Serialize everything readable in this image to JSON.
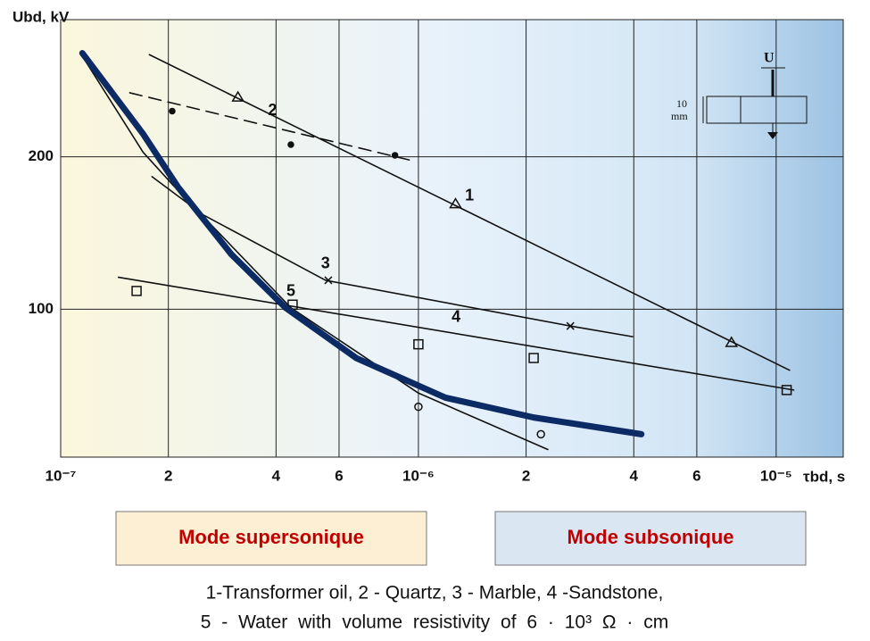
{
  "chart_data": {
    "type": "line",
    "x_scale": "log",
    "grid": true,
    "y_label": "Ubd, kV",
    "x_label": "τbd, s",
    "xlim": [
      1e-07,
      1.54e-05
    ],
    "ylim": [
      3,
      290
    ],
    "xticks": [
      {
        "value": 1e-07,
        "label": "10⁻⁷"
      },
      {
        "value": 2e-07,
        "label": "2"
      },
      {
        "value": 4e-07,
        "label": "4"
      },
      {
        "value": 6e-07,
        "label": "6"
      },
      {
        "value": 1e-06,
        "label": "10⁻⁶"
      },
      {
        "value": 2e-06,
        "label": "2"
      },
      {
        "value": 4e-06,
        "label": "4"
      },
      {
        "value": 6e-06,
        "label": "6"
      },
      {
        "value": 1e-05,
        "label": "10⁻⁵"
      }
    ],
    "yticks": [
      100,
      200
    ],
    "series": [
      {
        "label": "1",
        "color": "#111111",
        "dash": false,
        "marker": "triangle",
        "x": [
          1.77e-07,
          1.09e-05
        ],
        "values": [
          267,
          60
        ],
        "points": {
          "x": [
            3.13e-07,
            1.27e-06,
            7.5e-06
          ],
          "values": [
            239,
            169,
            78
          ]
        }
      },
      {
        "label": "2",
        "color": "#111111",
        "dash": true,
        "marker": "dot",
        "x": [
          1.56e-07,
          9.8e-07
        ],
        "values": [
          242,
          197
        ],
        "points": {
          "x": [
            2.05e-07,
            4.4e-07,
            8.6e-07
          ],
          "values": [
            230,
            208,
            201
          ]
        }
      },
      {
        "label": "3",
        "color": "#111111",
        "dash": false,
        "marker": "cross",
        "x": [
          1.8e-07,
          2.5e-07,
          5.5e-07,
          2.66e-06,
          3.97e-06
        ],
        "values": [
          187,
          162,
          119,
          89,
          82
        ],
        "points": {
          "x": [
            5.6e-07,
            2.66e-06
          ],
          "values": [
            119,
            89
          ]
        }
      },
      {
        "label": "4",
        "color": "#111111",
        "dash": false,
        "marker": "square",
        "x": [
          1.45e-07,
          1.12e-05
        ],
        "values": [
          121,
          47
        ],
        "points": {
          "x": [
            1.63e-07,
            4.45e-07,
            1e-06,
            2.1e-06,
            1.07e-05
          ],
          "values": [
            112,
            103,
            77,
            68,
            47
          ]
        }
      },
      {
        "label": "5",
        "color": "#111111",
        "dash": false,
        "marker": "circle",
        "x": [
          1.15e-07,
          1.7e-07,
          2.05e-07,
          4.4e-07,
          1e-06,
          2.3e-06
        ],
        "values": [
          266,
          203,
          182,
          101,
          45,
          8
        ],
        "points": {
          "x": [
            1e-06,
            2.2e-06
          ],
          "values": [
            36,
            18
          ]
        }
      },
      {
        "color": "#0c2a63",
        "width": 7,
        "dash": false,
        "x": [
          1.15e-07,
          1.7e-07,
          2.13e-07,
          3e-07,
          4.25e-07,
          6.7e-07,
          1.19e-06,
          2.1e-06,
          4.2e-06
        ],
        "values": [
          268,
          215,
          180,
          136,
          101,
          68,
          42,
          29,
          18
        ]
      }
    ],
    "annotations": [
      "Mode supersonique",
      "Mode subsonique"
    ],
    "inset": {
      "voltage": "U",
      "size": "10",
      "unit": "mm"
    },
    "caption": [
      "1-Transformer oil, 2 - Quartz, 3 - Marble, 4 -Sandstone,",
      "5 - Water with volume resistivity of 6 · 10³ Ω · cm"
    ]
  }
}
